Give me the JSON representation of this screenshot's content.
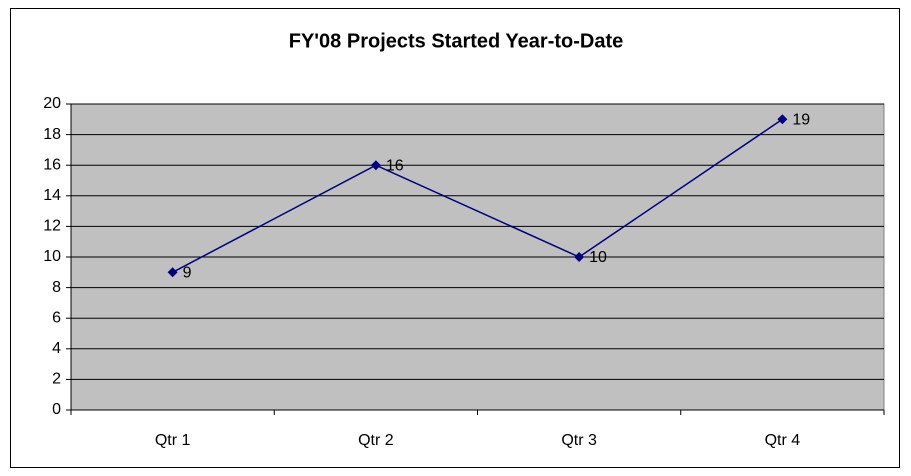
{
  "chart_data": {
    "type": "line",
    "title": "FY'08 Projects Started Year-to-Date",
    "categories": [
      "Qtr 1",
      "Qtr 2",
      "Qtr 3",
      "Qtr 4"
    ],
    "values": [
      9,
      16,
      10,
      19
    ],
    "color": "#000080",
    "ylim": [
      0,
      20
    ],
    "yticks": [
      0,
      2,
      4,
      6,
      8,
      10,
      12,
      14,
      16,
      18,
      20
    ],
    "grid": true
  }
}
